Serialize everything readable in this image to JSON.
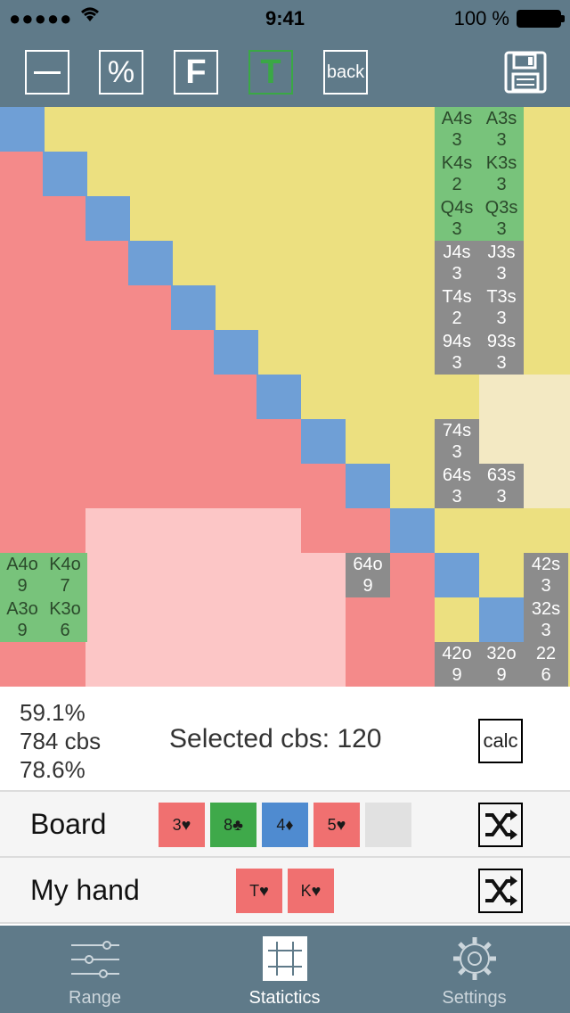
{
  "status": {
    "time": "9:41",
    "battery": "100 %"
  },
  "toolbar": {
    "pct_label": "%",
    "f_label": "F",
    "t_label": "T",
    "back_label": "back"
  },
  "grid": {
    "cells": [
      {
        "id": "c1",
        "lines": [
          "A4s",
          "3"
        ]
      },
      {
        "id": "c2",
        "lines": [
          "A3s",
          "3"
        ]
      },
      {
        "id": "c3",
        "lines": [
          "K4s",
          "2"
        ]
      },
      {
        "id": "c4",
        "lines": [
          "K3s",
          "3"
        ]
      },
      {
        "id": "c5",
        "lines": [
          "Q4s",
          "3"
        ]
      },
      {
        "id": "c6",
        "lines": [
          "Q3s",
          "3"
        ]
      },
      {
        "id": "c7",
        "lines": [
          "J4s",
          "3"
        ]
      },
      {
        "id": "c8",
        "lines": [
          "J3s",
          "3"
        ]
      },
      {
        "id": "c9",
        "lines": [
          "T4s",
          "2"
        ]
      },
      {
        "id": "c10",
        "lines": [
          "T3s",
          "3"
        ]
      },
      {
        "id": "c11",
        "lines": [
          "94s",
          "3"
        ]
      },
      {
        "id": "c12",
        "lines": [
          "93s",
          "3"
        ]
      },
      {
        "id": "c13",
        "lines": [
          "74s",
          "3"
        ]
      },
      {
        "id": "c14",
        "lines": [
          "64s",
          "3"
        ]
      },
      {
        "id": "c15",
        "lines": [
          "63s",
          "3"
        ]
      },
      {
        "id": "c16",
        "lines": [
          "A4o",
          "9"
        ]
      },
      {
        "id": "c17",
        "lines": [
          "K4o",
          "7"
        ]
      },
      {
        "id": "c18",
        "lines": [
          "64o",
          "9"
        ]
      },
      {
        "id": "c19",
        "lines": [
          "42s",
          "3"
        ]
      },
      {
        "id": "c20",
        "lines": [
          "A3o",
          "9"
        ]
      },
      {
        "id": "c21",
        "lines": [
          "K3o",
          "6"
        ]
      },
      {
        "id": "c22",
        "lines": [
          "32s",
          "3"
        ]
      },
      {
        "id": "c23",
        "lines": [
          "42o",
          "9"
        ]
      },
      {
        "id": "c24",
        "lines": [
          "32o",
          "9"
        ]
      },
      {
        "id": "c25",
        "lines": [
          "22",
          "6"
        ]
      }
    ]
  },
  "stats": {
    "line1": "59.1%",
    "line2": "784 cbs",
    "line3": "78.6%",
    "selected": "Selected cbs: 120",
    "calc_label": "calc"
  },
  "board": {
    "label": "Board",
    "cards": [
      {
        "text": "3♥",
        "color": "red"
      },
      {
        "text": "8♣",
        "color": "green"
      },
      {
        "text": "4♦",
        "color": "blue"
      },
      {
        "text": "5♥",
        "color": "red"
      },
      {
        "text": "",
        "color": "empty"
      }
    ]
  },
  "hand": {
    "label": "My hand",
    "cards": [
      {
        "text": "T♥",
        "color": "red"
      },
      {
        "text": "K♥",
        "color": "red"
      }
    ]
  },
  "tabs": [
    {
      "label": "Range",
      "icon": "sliders-icon"
    },
    {
      "label": "Statictics",
      "icon": "grid-icon"
    },
    {
      "label": "Settings",
      "icon": "gear-icon"
    }
  ],
  "colors": {
    "header": "#5f7a89",
    "yellow": "#ece080",
    "red": "#f48a8a",
    "pink": "#fcc6c6",
    "blue": "#6f9fd6",
    "green": "#78c37b",
    "gray": "#8c8c8c",
    "cream": "#f3e9c3"
  }
}
